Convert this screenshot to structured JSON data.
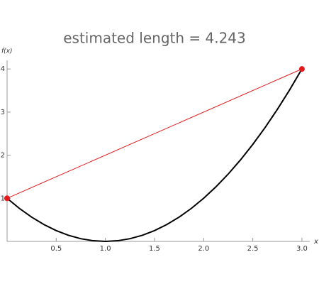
{
  "chart_data": {
    "type": "line",
    "title": "estimated length = 4.243",
    "x_label": "x",
    "y_label": "f(x)",
    "xlim": [
      0,
      3.08
    ],
    "ylim": [
      0,
      4.2
    ],
    "xticks": [
      0.5,
      {
        "value": 1,
        "label": "1.0"
      },
      1.5,
      {
        "value": 2,
        "label": "2.0"
      },
      2.5,
      {
        "value": 3,
        "label": "3.0"
      }
    ],
    "yticks": [
      1,
      2,
      3,
      4
    ],
    "series": [
      {
        "color": "#000000",
        "markers": false,
        "x": [
          0,
          0.125,
          0.25,
          0.375,
          0.5,
          0.625,
          0.75,
          0.875,
          1,
          1.125,
          1.25,
          1.375,
          1.5,
          1.625,
          1.75,
          1.875,
          2,
          2.125,
          2.25,
          2.375,
          2.5,
          2.625,
          2.75,
          2.875,
          3
        ],
        "values": [
          1,
          0.765625,
          0.5625,
          0.390625,
          0.25,
          0.140625,
          0.0625,
          0.015625,
          0,
          0.015625,
          0.0625,
          0.140625,
          0.25,
          0.390625,
          0.5625,
          0.765625,
          1,
          1.265625,
          1.5625,
          1.890625,
          2.25,
          2.640625,
          3.0625,
          3.515625,
          4
        ]
      },
      {
        "color": "#e41a1c",
        "markers": true,
        "x": [
          0,
          3
        ],
        "values": [
          1,
          4
        ]
      }
    ]
  }
}
